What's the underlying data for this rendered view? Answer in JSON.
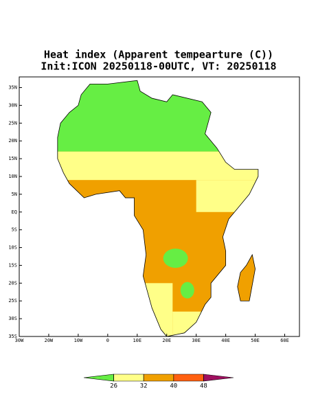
{
  "map": {
    "title": "Heat index (Apparent tempearture (C))",
    "subtitle": "Init:ICON 20250118-00UTC, VT: 20250118",
    "xlim": [
      -30,
      65
    ],
    "ylim": [
      -35,
      38
    ],
    "xticks": [
      {
        "value": -30,
        "label": "30W"
      },
      {
        "value": -20,
        "label": "20W"
      },
      {
        "value": -10,
        "label": "10W"
      },
      0,
      {
        "value": 10,
        "label": "10E"
      },
      {
        "value": 20,
        "label": "20E"
      },
      {
        "value": 30,
        "label": "30E"
      },
      {
        "value": 40,
        "label": "40E"
      },
      {
        "value": 50,
        "label": "50E"
      },
      {
        "value": 60,
        "label": "60E"
      }
    ],
    "yticks": [
      {
        "value": -35,
        "label": "35S"
      },
      {
        "value": -30,
        "label": "30S"
      },
      {
        "value": -25,
        "label": "25S"
      },
      {
        "value": -20,
        "label": "20S"
      },
      {
        "value": -15,
        "label": "15S"
      },
      {
        "value": -10,
        "label": "10S"
      },
      {
        "value": -5,
        "label": "5S"
      },
      {
        "value": 0,
        "label": "EQ"
      },
      {
        "value": 5,
        "label": "5N"
      },
      {
        "value": 10,
        "label": "10N"
      },
      {
        "value": 15,
        "label": "15N"
      },
      {
        "value": 20,
        "label": "20N"
      },
      {
        "value": 25,
        "label": "25N"
      },
      {
        "value": 30,
        "label": "30N"
      },
      {
        "value": 35,
        "label": "35N"
      }
    ],
    "colorbar": {
      "levels": [
        26,
        32,
        40,
        48
      ],
      "colors": [
        "#66ee44",
        "#ffff88",
        "#f0a000",
        "#ff6010",
        "#a01060"
      ]
    }
  }
}
